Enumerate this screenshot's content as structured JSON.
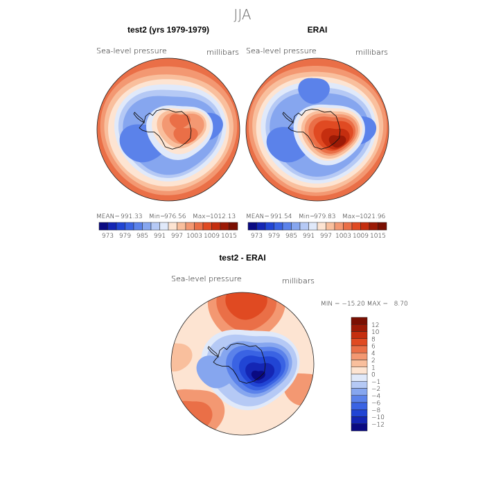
{
  "figure": {
    "season": "JJA"
  },
  "chart_data": [
    {
      "type": "heatmap",
      "panel": "left",
      "title": "test2 (yrs 1979-1979)",
      "variable": "Sea-level pressure",
      "units": "millibars",
      "projection": "south polar stereographic",
      "stats": {
        "mean_label": "MEAN=",
        "mean": "991.33",
        "min_label": "Min=",
        "min": "976.56",
        "max_label": "Max=",
        "max": "1012.13"
      },
      "levels": [
        973,
        976,
        979,
        982,
        985,
        988,
        991,
        994,
        997,
        1000,
        1003,
        1006,
        1009,
        1012,
        1015
      ],
      "colorbar_ticks": [
        "973",
        "979",
        "985",
        "991",
        "997",
        "1003",
        "1009",
        "1015"
      ],
      "colors": [
        "#0a0a82",
        "#1426b4",
        "#2145d4",
        "#3a63e3",
        "#5b82ea",
        "#86a6ef",
        "#b5c9f5",
        "#e0e9fa",
        "#fde4d2",
        "#f9bf9d",
        "#f39872",
        "#ea6f47",
        "#e04a22",
        "#c52e0f",
        "#9c1a06",
        "#7a0f02"
      ]
    },
    {
      "type": "heatmap",
      "panel": "right",
      "title": "ERAI",
      "variable": "Sea-level pressure",
      "units": "millibars",
      "projection": "south polar stereographic",
      "stats": {
        "mean_label": "MEAN=",
        "mean": "991.54",
        "min_label": "Min=",
        "min": "979.83",
        "max_label": "Max=",
        "max": "1021.96"
      },
      "levels": [
        973,
        976,
        979,
        982,
        985,
        988,
        991,
        994,
        997,
        1000,
        1003,
        1006,
        1009,
        1012,
        1015
      ],
      "colorbar_ticks": [
        "973",
        "979",
        "985",
        "991",
        "997",
        "1003",
        "1009",
        "1015"
      ],
      "colors": [
        "#0a0a82",
        "#1426b4",
        "#2145d4",
        "#3a63e3",
        "#5b82ea",
        "#86a6ef",
        "#b5c9f5",
        "#e0e9fa",
        "#fde4d2",
        "#f9bf9d",
        "#f39872",
        "#ea6f47",
        "#e04a22",
        "#c52e0f",
        "#9c1a06",
        "#7a0f02"
      ]
    },
    {
      "type": "heatmap",
      "panel": "difference",
      "title": "test2 - ERAI",
      "variable": "Sea-level pressure",
      "units": "millibars",
      "projection": "south polar stereographic",
      "stats": {
        "text": "MIN = −15.20 MAX =   8.70"
      },
      "levels": [
        -12,
        -10,
        -8,
        -6,
        -4,
        -2,
        -1,
        0,
        1,
        2,
        4,
        6,
        8,
        10,
        12
      ],
      "colorbar_ticks": [
        "12",
        "10",
        "8",
        "6",
        "4",
        "2",
        "1",
        "0",
        "−1",
        "−2",
        "−4",
        "−6",
        "−8",
        "−10",
        "−12"
      ],
      "colors": [
        "#0a0a82",
        "#1426b4",
        "#2145d4",
        "#3a63e3",
        "#5b82ea",
        "#86a6ef",
        "#b5c9f5",
        "#e0e9fa",
        "#fde4d2",
        "#f9bf9d",
        "#f39872",
        "#ea6f47",
        "#e04a22",
        "#c52e0f",
        "#9c1a06",
        "#7a0f02"
      ]
    }
  ]
}
